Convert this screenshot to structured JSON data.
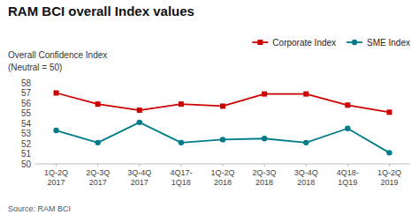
{
  "chart_data": {
    "type": "line",
    "title": "RAM BCI overall Index values",
    "subtitle": [
      "Overall Confidence Index",
      "(Neutral = 50)"
    ],
    "source": "Source: RAM BCI",
    "categories": [
      "1Q-2Q\n2017",
      "2Q-3Q\n2017",
      "3Q-4Q\n2017",
      "4Q17-\n1Q18",
      "1Q-2Q\n2018",
      "2Q-3Q\n2018",
      "3Q-4Q\n2018",
      "4Q18-\n1Q19",
      "1Q-2Q\n2019"
    ],
    "series": [
      {
        "name": "Corporate Index",
        "color": "#cc0000",
        "marker": "square",
        "values": [
          57.0,
          55.9,
          55.3,
          55.9,
          55.7,
          56.9,
          56.9,
          55.8,
          55.1
        ]
      },
      {
        "name": "SME Index",
        "color": "#007b8a",
        "marker": "circle",
        "values": [
          53.3,
          52.1,
          54.1,
          52.1,
          52.4,
          52.5,
          52.1,
          53.5,
          51.1
        ]
      }
    ],
    "ylim": [
      50,
      58
    ],
    "yticks": [
      50,
      51,
      52,
      53,
      54,
      55,
      56,
      57,
      58
    ],
    "grid": false,
    "legend": "upper right"
  }
}
